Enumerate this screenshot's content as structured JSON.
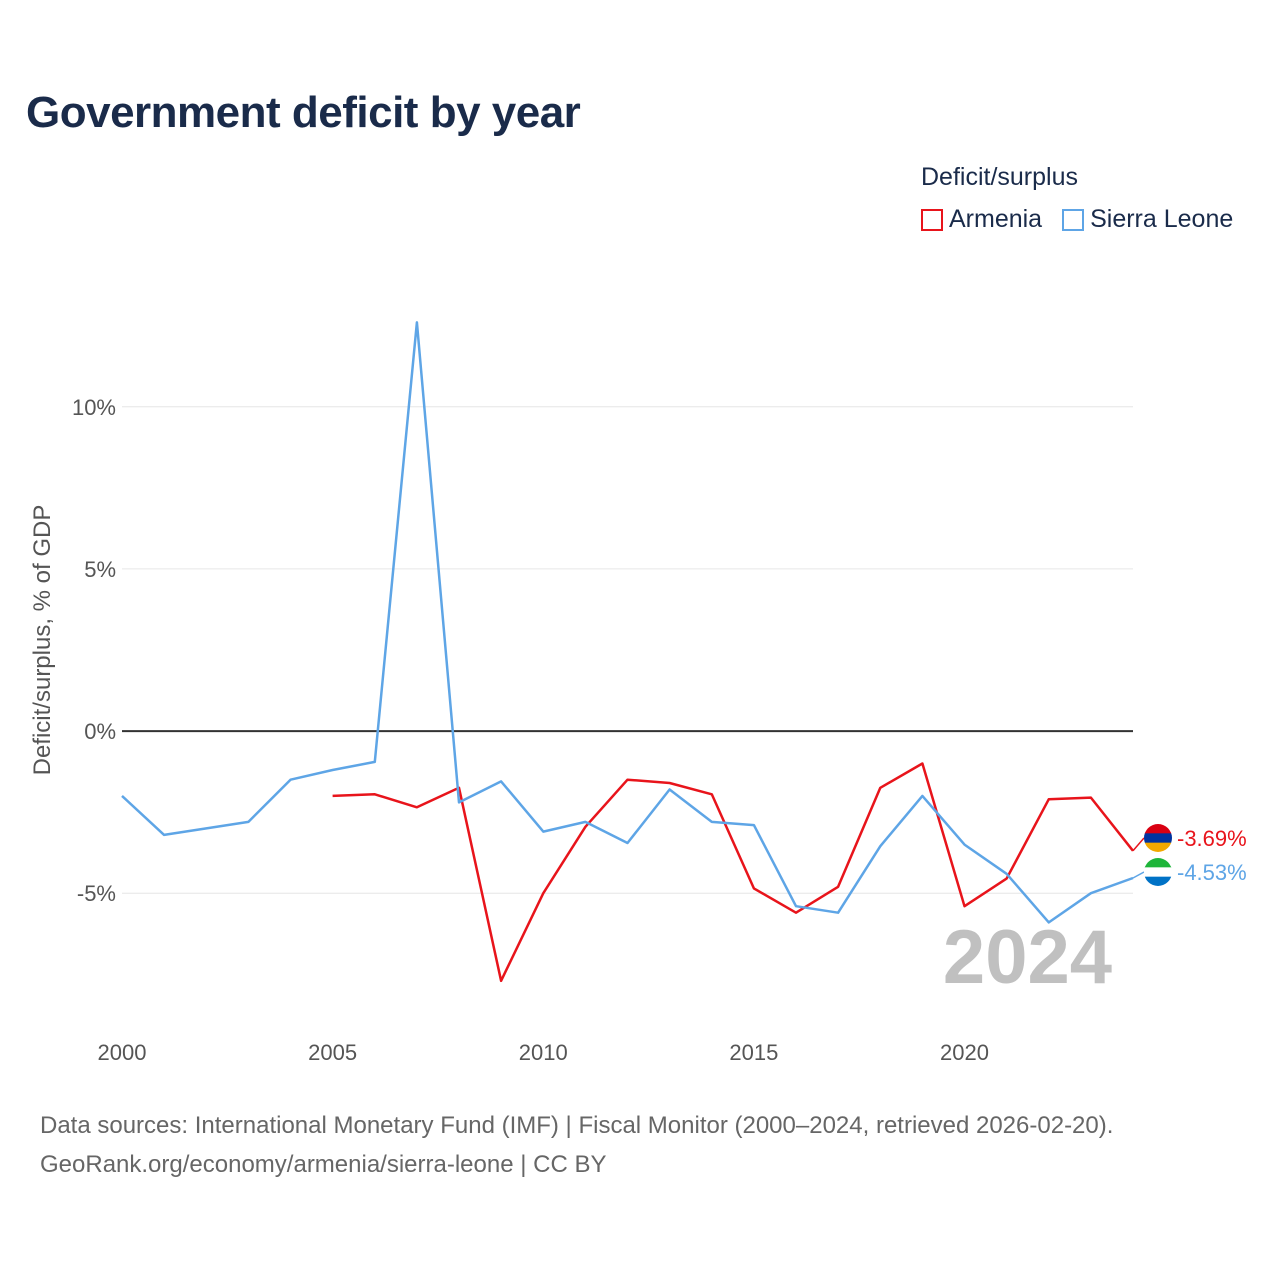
{
  "title": "Government deficit by year",
  "legend": {
    "title": "Deficit/surplus",
    "items": [
      {
        "label": "Armenia",
        "color": "#e8141b"
      },
      {
        "label": "Sierra Leone",
        "color": "#5ea5e6"
      }
    ]
  },
  "footer": {
    "line1": "Data sources: International Monetary Fund (IMF) | Fiscal Monitor (2000–2024, retrieved 2026-02-20).",
    "line2": "GeoRank.org/economy/armenia/sierra-leone | CC BY"
  },
  "chart_data": {
    "type": "line",
    "title": "Government deficit by year",
    "xlabel": "",
    "ylabel": "Deficit/surplus, % of GDP",
    "xlim": [
      2000,
      2024
    ],
    "ylim": [
      -8.6,
      13.6
    ],
    "x_ticks": [
      2000,
      2005,
      2010,
      2015,
      2020
    ],
    "x_tick_labels": [
      "2000",
      "2005",
      "2010",
      "2015",
      "2020"
    ],
    "y_ticks": [
      10,
      5,
      0,
      -5
    ],
    "y_tick_labels": [
      "10%",
      "5%",
      "0%",
      "-5%"
    ],
    "year_watermark": "2024",
    "series": [
      {
        "name": "Armenia",
        "color": "#e8141b",
        "end_label": "-3.69%",
        "points": [
          [
            2005,
            -2.0
          ],
          [
            2006,
            -1.95
          ],
          [
            2007,
            -2.35
          ],
          [
            2008,
            -1.75
          ],
          [
            2009,
            -7.7
          ],
          [
            2010,
            -5.0
          ],
          [
            2011,
            -2.95
          ],
          [
            2012,
            -1.5
          ],
          [
            2013,
            -1.6
          ],
          [
            2014,
            -1.95
          ],
          [
            2015,
            -4.85
          ],
          [
            2016,
            -5.6
          ],
          [
            2017,
            -4.8
          ],
          [
            2018,
            -1.75
          ],
          [
            2019,
            -1.0
          ],
          [
            2020,
            -5.4
          ],
          [
            2021,
            -4.55
          ],
          [
            2022,
            -2.1
          ],
          [
            2023,
            -2.05
          ],
          [
            2024,
            -3.69
          ]
        ]
      },
      {
        "name": "Sierra Leone",
        "color": "#5ea5e6",
        "end_label": "-4.53%",
        "points": [
          [
            2000,
            -2.0
          ],
          [
            2001,
            -3.2
          ],
          [
            2002,
            -3.0
          ],
          [
            2003,
            -2.8
          ],
          [
            2004,
            -1.5
          ],
          [
            2005,
            -1.2
          ],
          [
            2006,
            -0.95
          ],
          [
            2007,
            12.6
          ],
          [
            2008,
            -2.2
          ],
          [
            2009,
            -1.55
          ],
          [
            2010,
            -3.1
          ],
          [
            2011,
            -2.8
          ],
          [
            2012,
            -3.45
          ],
          [
            2013,
            -1.8
          ],
          [
            2014,
            -2.8
          ],
          [
            2015,
            -2.9
          ],
          [
            2016,
            -5.4
          ],
          [
            2017,
            -5.6
          ],
          [
            2018,
            -3.55
          ],
          [
            2019,
            -2.0
          ],
          [
            2020,
            -3.5
          ],
          [
            2021,
            -4.4
          ],
          [
            2022,
            -5.9
          ],
          [
            2023,
            -5.0
          ],
          [
            2024,
            -4.53
          ]
        ]
      }
    ]
  }
}
